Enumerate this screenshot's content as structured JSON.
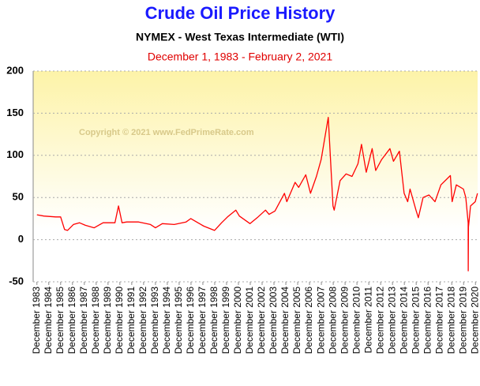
{
  "chart_data": {
    "type": "line",
    "title": "Crude Oil Price History",
    "subtitle": "NYMEX - West Texas Intermediate  (WTI)",
    "date_range": "December 1, 1983  -  February 2, 2021",
    "annotation": "Copyright © 2021 www.FedPrimeRate.com",
    "x": [
      1983.92,
      1984.5,
      1985.5,
      1985.92,
      1986.25,
      1986.5,
      1987.0,
      1987.5,
      1988.0,
      1988.75,
      1989.5,
      1990.5,
      1990.8,
      1991.1,
      1991.5,
      1992.5,
      1993.5,
      1993.92,
      1994.5,
      1995.5,
      1996.5,
      1996.9,
      1997.5,
      1998.0,
      1998.9,
      1999.5,
      2000.0,
      2000.7,
      2001.0,
      2001.9,
      2002.5,
      2003.2,
      2003.5,
      2004.0,
      2004.8,
      2005.0,
      2005.7,
      2006.0,
      2006.6,
      2007.0,
      2007.5,
      2007.9,
      2008.5,
      2008.9,
      2009.0,
      2009.5,
      2010.0,
      2010.5,
      2011.0,
      2011.3,
      2011.7,
      2012.2,
      2012.5,
      2013.0,
      2013.7,
      2014.0,
      2014.5,
      2014.9,
      2015.2,
      2015.4,
      2015.9,
      2016.1,
      2016.5,
      2017.0,
      2017.5,
      2018.0,
      2018.8,
      2018.95,
      2019.3,
      2019.9,
      2020.1,
      2020.3,
      2020.31,
      2020.33,
      2020.5,
      2020.9,
      2021.09
    ],
    "series": [
      {
        "name": "WTI",
        "color": "#ff0000",
        "values": [
          29.5,
          28,
          27,
          27,
          12,
          11,
          18,
          20,
          17,
          14,
          20,
          20,
          40,
          20,
          21,
          21,
          18,
          14,
          19,
          18,
          21,
          25,
          20,
          16,
          11,
          20,
          27,
          35,
          28,
          19,
          26,
          35,
          30,
          34,
          55,
          45,
          68,
          62,
          77,
          55,
          75,
          95,
          145,
          40,
          35,
          70,
          78,
          75,
          90,
          113,
          80,
          108,
          82,
          95,
          108,
          93,
          105,
          55,
          45,
          60,
          35,
          26,
          50,
          53,
          45,
          65,
          76,
          45,
          65,
          60,
          50,
          20,
          -37,
          15,
          40,
          45,
          55
        ]
      }
    ],
    "xlim": [
      1983.6,
      2021.1
    ],
    "ylim": [
      -50,
      200
    ],
    "yticks": [
      -50,
      0,
      50,
      100,
      150,
      200
    ],
    "xticks": [
      {
        "value": 1983.917,
        "label": "December 1983"
      },
      {
        "value": 1984.917,
        "label": "December 1984"
      },
      {
        "value": 1985.917,
        "label": "December 1985"
      },
      {
        "value": 1986.917,
        "label": "December 1986"
      },
      {
        "value": 1987.917,
        "label": "December 1987"
      },
      {
        "value": 1988.917,
        "label": "December 1988"
      },
      {
        "value": 1989.917,
        "label": "December 1989"
      },
      {
        "value": 1990.917,
        "label": "December 1990"
      },
      {
        "value": 1991.917,
        "label": "December 1991"
      },
      {
        "value": 1992.917,
        "label": "December 1992"
      },
      {
        "value": 1993.917,
        "label": "December 1993"
      },
      {
        "value": 1994.917,
        "label": "December 1994"
      },
      {
        "value": 1995.917,
        "label": "December 1995"
      },
      {
        "value": 1996.917,
        "label": "December 1996"
      },
      {
        "value": 1997.917,
        "label": "December 1997"
      },
      {
        "value": 1998.917,
        "label": "December 1998"
      },
      {
        "value": 1999.917,
        "label": "December 1999"
      },
      {
        "value": 2000.917,
        "label": "December 2000"
      },
      {
        "value": 2001.917,
        "label": "December 2001"
      },
      {
        "value": 2002.917,
        "label": "December 2002"
      },
      {
        "value": 2003.917,
        "label": "December 2003"
      },
      {
        "value": 2004.917,
        "label": "December 2004"
      },
      {
        "value": 2005.917,
        "label": "December 2005"
      },
      {
        "value": 2006.917,
        "label": "December 2006"
      },
      {
        "value": 2007.917,
        "label": "December 2007"
      },
      {
        "value": 2008.917,
        "label": "December 2008"
      },
      {
        "value": 2009.917,
        "label": "December 2009"
      },
      {
        "value": 2010.917,
        "label": "December 2010"
      },
      {
        "value": 2011.917,
        "label": "December 2011"
      },
      {
        "value": 2012.917,
        "label": "December 2012"
      },
      {
        "value": 2013.917,
        "label": "December 2013"
      },
      {
        "value": 2014.917,
        "label": "December 2014"
      },
      {
        "value": 2015.917,
        "label": "December 2015"
      },
      {
        "value": 2016.917,
        "label": "December 2016"
      },
      {
        "value": 2017.917,
        "label": "December 2017"
      },
      {
        "value": 2018.917,
        "label": "December 2018"
      },
      {
        "value": 2019.917,
        "label": "December 2019"
      },
      {
        "value": 2020.917,
        "label": "December 2020"
      }
    ],
    "grid": true
  }
}
